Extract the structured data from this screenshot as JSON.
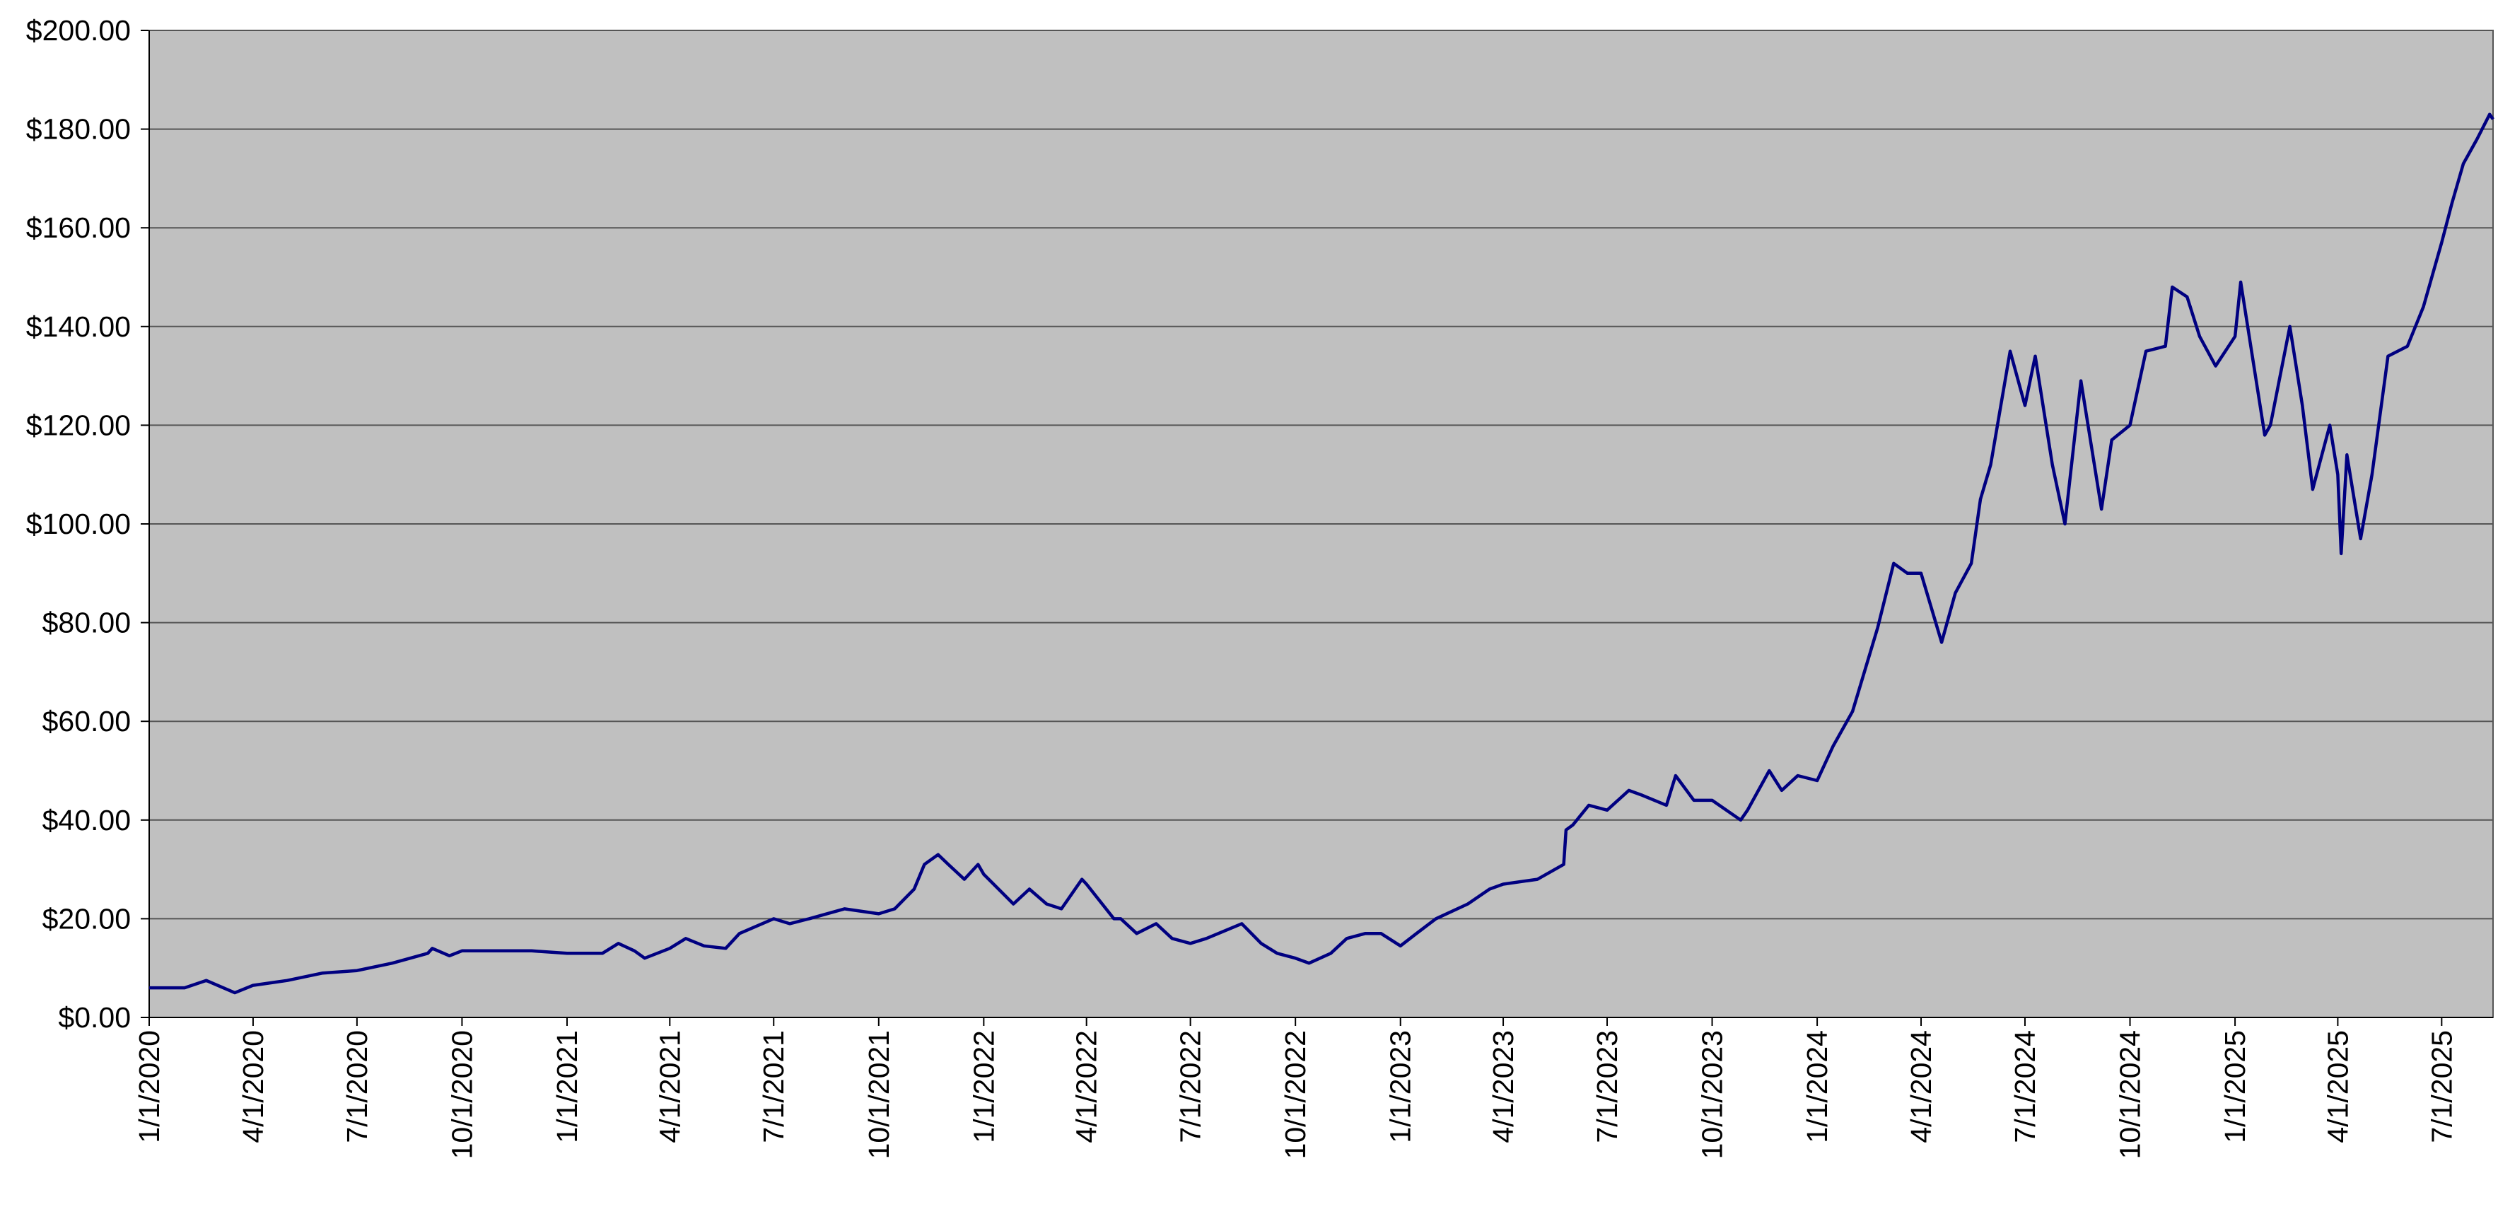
{
  "chart_data": {
    "type": "line",
    "color": "#000080",
    "background": "#c0c0c0",
    "grid": true,
    "ylim": [
      0,
      200
    ],
    "yticks": [
      {
        "value": 0,
        "label": "$0.00"
      },
      {
        "value": 20,
        "label": "$20.00"
      },
      {
        "value": 40,
        "label": "$40.00"
      },
      {
        "value": 60,
        "label": "$60.00"
      },
      {
        "value": 80,
        "label": "$80.00"
      },
      {
        "value": 100,
        "label": "$100.00"
      },
      {
        "value": 120,
        "label": "$120.00"
      },
      {
        "value": 140,
        "label": "$140.00"
      },
      {
        "value": 160,
        "label": "$160.00"
      },
      {
        "value": 180,
        "label": "$180.00"
      },
      {
        "value": 200,
        "label": "$200.00"
      }
    ],
    "xlim": [
      "1/1/2020",
      "8/15/2025"
    ],
    "xticks": [
      "1/1/2020",
      "4/1/2020",
      "7/1/2020",
      "10/1/2020",
      "1/1/2021",
      "4/1/2021",
      "7/1/2021",
      "10/1/2021",
      "1/1/2022",
      "4/1/2022",
      "7/1/2022",
      "10/1/2022",
      "1/1/2023",
      "4/1/2023",
      "7/1/2023",
      "10/1/2023",
      "1/1/2024",
      "4/1/2024",
      "7/1/2024",
      "10/1/2024",
      "1/1/2025",
      "4/1/2025",
      "7/1/2025"
    ],
    "x": [
      "1/1/2020",
      "2/1/2020",
      "2/20/2020",
      "3/16/2020",
      "4/1/2020",
      "5/1/2020",
      "6/1/2020",
      "7/1/2020",
      "8/1/2020",
      "9/1/2020",
      "9/5/2020",
      "9/20/2020",
      "10/1/2020",
      "11/1/2020",
      "12/1/2020",
      "1/1/2021",
      "2/1/2021",
      "2/15/2021",
      "3/1/2021",
      "3/10/2021",
      "4/1/2021",
      "4/15/2021",
      "5/1/2021",
      "5/20/2021",
      "6/1/2021",
      "7/1/2021",
      "7/15/2021",
      "8/1/2021",
      "9/1/2021",
      "10/1/2021",
      "10/15/2021",
      "11/1/2021",
      "11/10/2021",
      "11/22/2021",
      "12/1/2021",
      "12/15/2021",
      "12/27/2021",
      "1/1/2022",
      "1/27/2022",
      "2/10/2022",
      "2/25/2022",
      "3/10/2022",
      "3/28/2022",
      "4/1/2022",
      "4/25/2022",
      "5/1/2022",
      "5/15/2022",
      "6/1/2022",
      "6/15/2022",
      "7/1/2022",
      "7/15/2022",
      "8/15/2022",
      "9/1/2022",
      "9/15/2022",
      "10/1/2022",
      "10/13/2022",
      "11/1/2022",
      "11/15/2022",
      "12/1/2022",
      "12/15/2022",
      "1/1/2023",
      "1/15/2023",
      "2/1/2023",
      "3/1/2023",
      "3/20/2023",
      "4/1/2023",
      "5/1/2023",
      "5/24/2023",
      "5/26/2023",
      "6/1/2023",
      "6/15/2023",
      "7/1/2023",
      "7/20/2023",
      "8/1/2023",
      "8/22/2023",
      "8/30/2023",
      "9/15/2023",
      "10/1/2023",
      "10/26/2023",
      "11/1/2023",
      "11/20/2023",
      "12/1/2023",
      "12/15/2023",
      "1/1/2024",
      "1/15/2024",
      "2/1/2024",
      "2/23/2024",
      "3/8/2024",
      "3/20/2024",
      "4/1/2024",
      "4/19/2024",
      "5/1/2024",
      "5/15/2024",
      "5/23/2024",
      "6/1/2024",
      "6/18/2024",
      "7/1/2024",
      "7/10/2024",
      "7/25/2024",
      "8/5/2024",
      "8/19/2024",
      "9/6/2024",
      "9/15/2024",
      "10/1/2024",
      "10/15/2024",
      "11/1/2024",
      "11/7/2024",
      "11/20/2024",
      "12/1/2024",
      "12/15/2024",
      "1/1/2025",
      "1/6/2025",
      "1/27/2025",
      "2/1/2025",
      "2/18/2025",
      "3/1/2025",
      "3/10/2025",
      "3/25/2025",
      "4/1/2025",
      "4/4/2025",
      "4/9/2025",
      "4/21/2025",
      "5/1/2025",
      "5/15/2025",
      "6/1/2025",
      "6/15/2025",
      "7/1/2025",
      "7/10/2025",
      "7/20/2025",
      "8/1/2025",
      "8/12/2025",
      "8/15/2025"
    ],
    "values": [
      6,
      6,
      7.5,
      5,
      6.5,
      7.5,
      9,
      9.5,
      11,
      13,
      14,
      12.5,
      13.5,
      13.5,
      13.5,
      13,
      13,
      15,
      13.5,
      12,
      14,
      16,
      14.5,
      14,
      17,
      20,
      19,
      20,
      22,
      21,
      22,
      26,
      31,
      33,
      31,
      28,
      31,
      29,
      23,
      26,
      23,
      22,
      28,
      27,
      20,
      20,
      17,
      19,
      16,
      15,
      16,
      19,
      15,
      13,
      12,
      11,
      13,
      16,
      17,
      17,
      14.5,
      17,
      20,
      23,
      26,
      27,
      28,
      31,
      38,
      39,
      43,
      42,
      46,
      45,
      43,
      49,
      44,
      44,
      40,
      42,
      50,
      46,
      49,
      48,
      55,
      62,
      79,
      92,
      90,
      90,
      76,
      86,
      92,
      105,
      112,
      135,
      124,
      134,
      112,
      100,
      129,
      103,
      117,
      120,
      135,
      136,
      148,
      146,
      138,
      132,
      138,
      149,
      118,
      120,
      140,
      124,
      107,
      120,
      110,
      94,
      114,
      97,
      110,
      134,
      136,
      144,
      157,
      165,
      173,
      178,
      183,
      182
    ]
  }
}
